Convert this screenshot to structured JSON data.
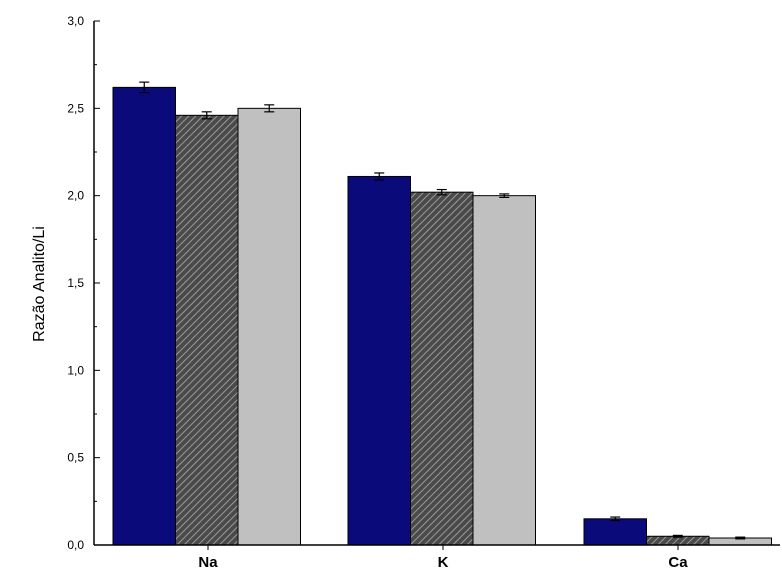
{
  "chart_data": {
    "type": "bar",
    "title": "",
    "xlabel": "",
    "ylabel": "Razão Analito/Li",
    "ylim": [
      0,
      3.0
    ],
    "yticks": [
      "0,0",
      "0,5",
      "1,0",
      "1,5",
      "2,0",
      "2,5",
      "3,0"
    ],
    "categories": [
      "Na",
      "K",
      "Ca"
    ],
    "series": [
      {
        "values": [
          2.62,
          2.11,
          0.15
        ],
        "errors": [
          0.03,
          0.02,
          0.01
        ],
        "color": "#0a0a7a",
        "fill": "solid"
      },
      {
        "values": [
          2.46,
          2.02,
          0.05
        ],
        "errors": [
          0.02,
          0.015,
          0.005
        ],
        "color": "#808080",
        "fill": "hatched"
      },
      {
        "values": [
          2.5,
          2.0,
          0.04
        ],
        "errors": [
          0.02,
          0.01,
          0.005
        ],
        "color": "#c0c0c0",
        "fill": "solid"
      }
    ],
    "grid": false,
    "legend": "none"
  }
}
